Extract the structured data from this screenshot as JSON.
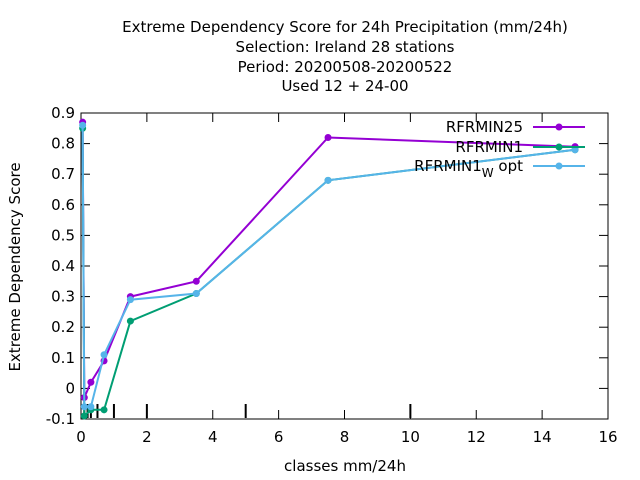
{
  "chart_data": {
    "type": "line",
    "title_lines": [
      "Extreme Dependency Score  for 24h Precipitation (mm/24h)",
      "Selection: Ireland      28 stations",
      "Period: 20200508-20200522",
      "Used  12 + 24-00"
    ],
    "xlabel": "classes mm/24h",
    "ylabel": "Extreme Dependency Score",
    "xlim": [
      0,
      16
    ],
    "ylim": [
      -0.1,
      0.9
    ],
    "x_ticks": [
      "0",
      "2",
      "4",
      "6",
      "8",
      "10",
      "12",
      "14",
      "16"
    ],
    "y_ticks": [
      "-0.1",
      "0",
      "0.1",
      "0.2",
      "0.3",
      "0.4",
      "0.5",
      "0.6",
      "0.7",
      "0.8",
      "0.9"
    ],
    "x_tick_values": [
      0,
      2,
      4,
      6,
      8,
      10,
      12,
      14,
      16
    ],
    "y_tick_values": [
      -0.1,
      0,
      0.1,
      0.2,
      0.3,
      0.4,
      0.5,
      0.6,
      0.7,
      0.8,
      0.9
    ],
    "class_marks": [
      0.1,
      0.2,
      0.3,
      0.5,
      1,
      2,
      5,
      10
    ],
    "grid": false,
    "legend_position": "top-right",
    "series": [
      {
        "name": "RFRMIN25",
        "color": "#9400d3",
        "x": [
          0.05,
          0.1,
          0.3,
          0.7,
          1.5,
          3.5,
          7.5,
          15
        ],
        "y": [
          0.87,
          -0.03,
          0.02,
          0.09,
          0.3,
          0.35,
          0.82,
          0.79
        ]
      },
      {
        "name": "RFRMIN1",
        "color": "#009e73",
        "x": [
          0.05,
          0.1,
          0.3,
          0.7,
          1.5,
          3.5,
          7.5,
          15
        ],
        "y": [
          0.85,
          -0.09,
          -0.07,
          -0.07,
          0.22,
          0.31,
          0.68,
          0.78
        ]
      },
      {
        "name": "RFRMIN1_W opt",
        "legend_main": "RFRMIN1",
        "legend_sub": "W",
        "legend_tail": "opt",
        "color": "#56b4e9",
        "x": [
          0.05,
          0.1,
          0.3,
          0.7,
          1.5,
          3.5,
          7.5,
          15
        ],
        "y": [
          0.86,
          -0.06,
          -0.06,
          0.11,
          0.29,
          0.31,
          0.68,
          0.78
        ]
      }
    ]
  }
}
